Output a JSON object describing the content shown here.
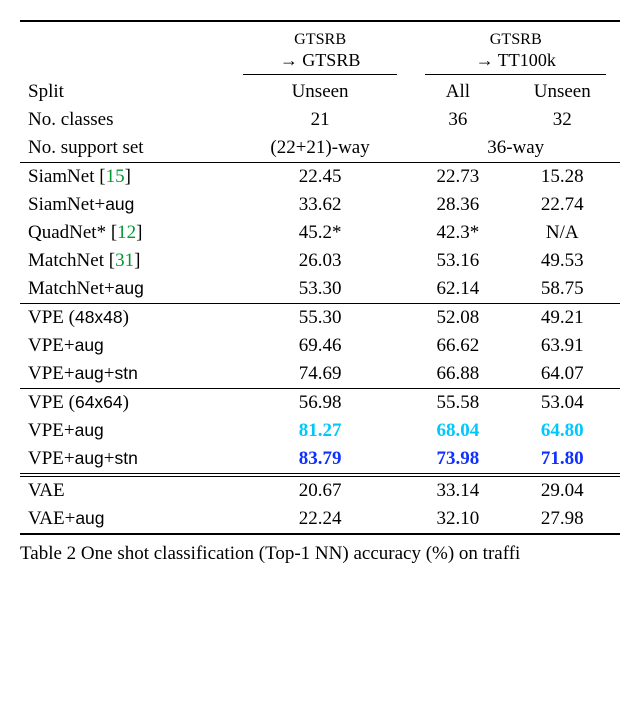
{
  "header": {
    "group1_line1": "GTSRB",
    "group1_line2": "→ GTSRB",
    "group2_line1": "GTSRB",
    "group2_line2": "→ TT100k",
    "row1_label": "Split",
    "row1_c1": "Unseen",
    "row1_c2": "All",
    "row1_c3": "Unseen",
    "row2_label": "No. classes",
    "row2_c1": "21",
    "row2_c2": "36",
    "row2_c3": "32",
    "row3_label": "No. support set",
    "row3_c1": "(22+21)-way",
    "row3_c23": "36-way"
  },
  "rows": {
    "siam": {
      "label_pre": "SiamNet [",
      "ref": "15",
      "label_post": "]",
      "c1": "22.45",
      "c2": "22.73",
      "c3": "15.28"
    },
    "siam_aug": {
      "label_pre": "SiamNet+",
      "sans": "aug",
      "label_post": "",
      "c1": "33.62",
      "c2": "28.36",
      "c3": "22.74"
    },
    "quad": {
      "label_pre": "QuadNet* [",
      "ref": "12",
      "label_post": "]",
      "c1": "45.2*",
      "c2": "42.3*",
      "c3": "N/A"
    },
    "match": {
      "label_pre": "MatchNet [",
      "ref": "31",
      "label_post": "]",
      "c1": "26.03",
      "c2": "53.16",
      "c3": "49.53"
    },
    "match_aug": {
      "label_pre": "MatchNet+",
      "sans": "aug",
      "label_post": "",
      "c1": "53.30",
      "c2": "62.14",
      "c3": "58.75"
    },
    "vpe48": {
      "label_pre": "VPE (",
      "sans": "48x48",
      "label_post": ")",
      "c1": "55.30",
      "c2": "52.08",
      "c3": "49.21"
    },
    "vpe48_a": {
      "label_pre": "VPE+",
      "sans": "aug",
      "label_post": "",
      "c1": "69.46",
      "c2": "66.62",
      "c3": "63.91"
    },
    "vpe48_as": {
      "label_pre": "VPE+",
      "sans": "aug",
      "mid": "+",
      "sans2": "stn",
      "c1": "74.69",
      "c2": "66.88",
      "c3": "64.07"
    },
    "vpe64": {
      "label_pre": "VPE (",
      "sans": "64x64",
      "label_post": ")",
      "c1": "56.98",
      "c2": "55.58",
      "c3": "53.04"
    },
    "vpe64_a": {
      "label_pre": "VPE+",
      "sans": "aug",
      "label_post": "",
      "c1": "81.27",
      "c2": "68.04",
      "c3": "64.80",
      "color": "cyan"
    },
    "vpe64_as": {
      "label_pre": "VPE+",
      "sans": "aug",
      "mid": "+",
      "sans2": "stn",
      "c1": "83.79",
      "c2": "73.98",
      "c3": "71.80",
      "color": "blue"
    },
    "vae": {
      "label_pre": "VAE",
      "c1": "20.67",
      "c2": "33.14",
      "c3": "29.04"
    },
    "vae_a": {
      "label_pre": "VAE+",
      "sans": "aug",
      "c1": "22.24",
      "c2": "32.10",
      "c3": "27.98"
    }
  },
  "caption_partial": "Table 2  One shot classification (Top-1 NN) accuracy (%) on traffi"
}
